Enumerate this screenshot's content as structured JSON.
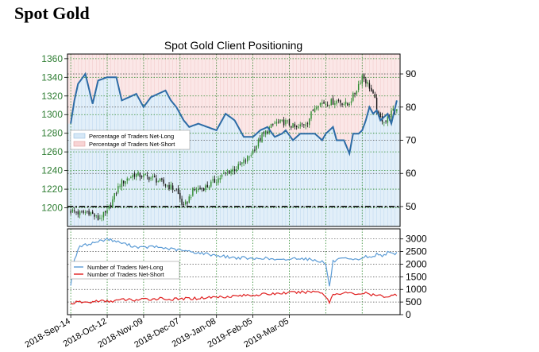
{
  "page": {
    "title": "Spot Gold"
  },
  "colors": {
    "candle_up": "#2e8b2e",
    "candle_down": "#111111",
    "net_long_line": "#2d6ca6",
    "net_long_fill": "#d6e8f7",
    "net_short_fill": "#f8d4d4",
    "count_long_line": "#5b9bd5",
    "count_short_line": "#e02020",
    "grid_green": "#2e8b2e",
    "grid_black": "#555555"
  },
  "chart_data": [
    {
      "type": "candlestick",
      "title": "Spot Gold Client Positioning",
      "x_tick_labels": [
        "2018-Sep-14",
        "2018-Oct-12",
        "2018-Nov-09",
        "2018-Dec-07",
        "2019-Jan-08",
        "2019-Feb-05",
        "2019-Mar-05"
      ],
      "ylim": [
        1180,
        1365
      ],
      "y_ticks": [
        1200,
        1220,
        1240,
        1260,
        1280,
        1300,
        1320,
        1340,
        1360
      ],
      "close_points": [
        [
          0,
          1197
        ],
        [
          5,
          1194
        ],
        [
          10,
          1196
        ],
        [
          15,
          1188
        ],
        [
          20,
          1195
        ],
        [
          27,
          1226
        ],
        [
          35,
          1236
        ],
        [
          45,
          1232
        ],
        [
          58,
          1219
        ],
        [
          62,
          1200
        ],
        [
          67,
          1218
        ],
        [
          75,
          1223
        ],
        [
          85,
          1237
        ],
        [
          92,
          1244
        ],
        [
          98,
          1255
        ],
        [
          105,
          1277
        ],
        [
          112,
          1291
        ],
        [
          118,
          1292
        ],
        [
          124,
          1285
        ],
        [
          130,
          1293
        ],
        [
          135,
          1312
        ],
        [
          142,
          1313
        ],
        [
          147,
          1315
        ],
        [
          152,
          1310
        ],
        [
          156,
          1323
        ],
        [
          160,
          1342
        ],
        [
          164,
          1330
        ],
        [
          167,
          1315
        ],
        [
          169,
          1297
        ],
        [
          173,
          1293
        ],
        [
          176,
          1302
        ],
        [
          179,
          1306
        ]
      ],
      "net_long_pct": {
        "ylim": [
          44,
          96
        ],
        "y_ticks": [
          50,
          60,
          70,
          80,
          90
        ],
        "reference_line": 50,
        "points": [
          [
            0,
            75
          ],
          [
            2,
            82
          ],
          [
            4,
            87
          ],
          [
            8,
            90
          ],
          [
            12,
            81
          ],
          [
            15,
            88
          ],
          [
            20,
            89
          ],
          [
            25,
            89
          ],
          [
            28,
            82
          ],
          [
            32,
            83
          ],
          [
            36,
            84
          ],
          [
            40,
            80
          ],
          [
            44,
            83
          ],
          [
            48,
            84
          ],
          [
            52,
            85
          ],
          [
            55,
            82
          ],
          [
            58,
            80
          ],
          [
            62,
            76
          ],
          [
            65,
            74
          ],
          [
            70,
            75
          ],
          [
            75,
            74
          ],
          [
            80,
            73
          ],
          [
            85,
            78
          ],
          [
            90,
            76
          ],
          [
            95,
            71
          ],
          [
            100,
            71
          ],
          [
            104,
            73
          ],
          [
            108,
            74
          ],
          [
            112,
            71
          ],
          [
            116,
            72
          ],
          [
            118,
            73
          ],
          [
            122,
            70
          ],
          [
            126,
            72
          ],
          [
            130,
            72
          ],
          [
            134,
            72
          ],
          [
            138,
            70
          ],
          [
            140,
            72
          ],
          [
            144,
            74
          ],
          [
            146,
            70
          ],
          [
            150,
            70
          ],
          [
            153,
            66
          ],
          [
            155,
            72
          ],
          [
            158,
            72
          ],
          [
            160,
            73
          ],
          [
            162,
            76
          ],
          [
            164,
            80
          ],
          [
            166,
            78
          ],
          [
            168,
            79
          ],
          [
            170,
            76
          ],
          [
            172,
            77
          ],
          [
            174,
            78
          ],
          [
            176,
            75
          ],
          [
            179,
            82
          ]
        ]
      }
    },
    {
      "type": "line",
      "ylim": [
        0,
        3400
      ],
      "y_ticks": [
        0,
        500,
        1000,
        1500,
        2000,
        2500,
        3000
      ],
      "series": [
        {
          "name": "Number of Traders Net-Long",
          "points": [
            [
              0,
              1200
            ],
            [
              2,
              2200
            ],
            [
              5,
              2700
            ],
            [
              10,
              2800
            ],
            [
              15,
              2900
            ],
            [
              20,
              3000
            ],
            [
              25,
              2900
            ],
            [
              30,
              2800
            ],
            [
              35,
              2700
            ],
            [
              40,
              2650
            ],
            [
              45,
              2700
            ],
            [
              50,
              2650
            ],
            [
              55,
              2600
            ],
            [
              60,
              2550
            ],
            [
              65,
              2500
            ],
            [
              70,
              2450
            ],
            [
              75,
              2400
            ],
            [
              80,
              2350
            ],
            [
              85,
              2300
            ],
            [
              90,
              2250
            ],
            [
              95,
              2250
            ],
            [
              100,
              2200
            ],
            [
              105,
              2250
            ],
            [
              110,
              2200
            ],
            [
              115,
              2150
            ],
            [
              120,
              2200
            ],
            [
              125,
              2250
            ],
            [
              130,
              2200
            ],
            [
              135,
              2150
            ],
            [
              138,
              2100
            ],
            [
              140,
              2000
            ],
            [
              142,
              1100
            ],
            [
              144,
              2100
            ],
            [
              148,
              2200
            ],
            [
              152,
              2200
            ],
            [
              155,
              2150
            ],
            [
              158,
              2200
            ],
            [
              162,
              2300
            ],
            [
              165,
              2250
            ],
            [
              168,
              2400
            ],
            [
              171,
              2350
            ],
            [
              174,
              2450
            ],
            [
              177,
              2400
            ],
            [
              179,
              2450
            ]
          ]
        },
        {
          "name": "Number of Traders Net-Short",
          "points": [
            [
              0,
              450
            ],
            [
              5,
              500
            ],
            [
              10,
              480
            ],
            [
              15,
              550
            ],
            [
              20,
              520
            ],
            [
              25,
              560
            ],
            [
              30,
              600
            ],
            [
              35,
              580
            ],
            [
              40,
              600
            ],
            [
              45,
              620
            ],
            [
              50,
              650
            ],
            [
              55,
              600
            ],
            [
              60,
              620
            ],
            [
              65,
              640
            ],
            [
              70,
              650
            ],
            [
              75,
              680
            ],
            [
              80,
              700
            ],
            [
              85,
              720
            ],
            [
              90,
              740
            ],
            [
              95,
              760
            ],
            [
              100,
              780
            ],
            [
              105,
              800
            ],
            [
              110,
              820
            ],
            [
              115,
              850
            ],
            [
              120,
              870
            ],
            [
              125,
              880
            ],
            [
              130,
              900
            ],
            [
              135,
              920
            ],
            [
              138,
              880
            ],
            [
              140,
              700
            ],
            [
              142,
              500
            ],
            [
              144,
              800
            ],
            [
              148,
              850
            ],
            [
              152,
              870
            ],
            [
              155,
              820
            ],
            [
              158,
              830
            ],
            [
              162,
              850
            ],
            [
              165,
              780
            ],
            [
              168,
              760
            ],
            [
              171,
              740
            ],
            [
              174,
              720
            ],
            [
              177,
              760
            ],
            [
              179,
              800
            ]
          ]
        }
      ]
    }
  ],
  "legend_top": {
    "items": [
      {
        "label": "Percentage of Traders Net-Long",
        "swatch": "#d6e8f7"
      },
      {
        "label": "Percentage of Traders Net-Short",
        "swatch": "#f8d4d4"
      }
    ]
  },
  "legend_bottom": {
    "items": [
      {
        "label": "Number of Traders Net-Long",
        "swatch": "#5b9bd5"
      },
      {
        "label": "Number of Traders Net-Short",
        "swatch": "#e02020"
      }
    ]
  }
}
